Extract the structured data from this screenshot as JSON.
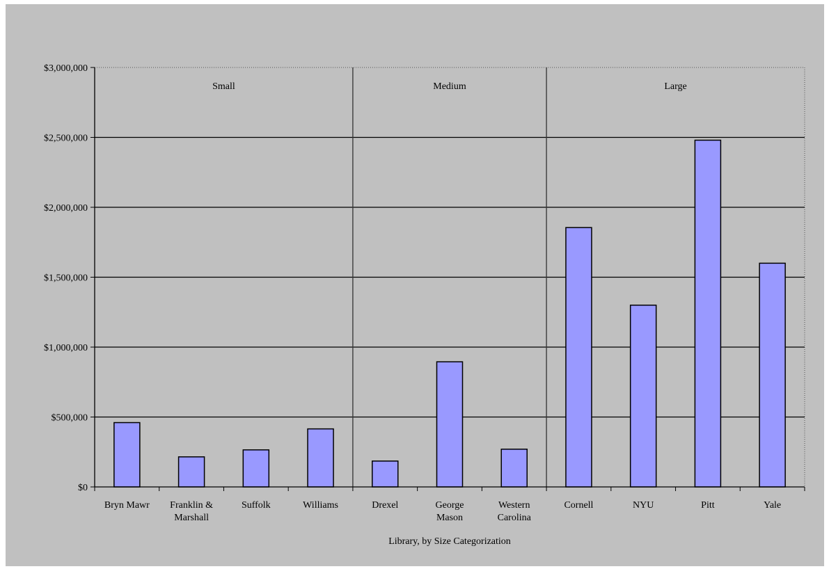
{
  "chart_data": {
    "type": "bar",
    "title": "",
    "xlabel": "Library, by Size Categorization",
    "ylabel": "",
    "ylim": [
      0,
      3000000
    ],
    "yticks": [
      {
        "value": 0,
        "label": "$0"
      },
      {
        "value": 500000,
        "label": "$500,000"
      },
      {
        "value": 1000000,
        "label": "$1,000,000"
      },
      {
        "value": 1500000,
        "label": "$1,500,000"
      },
      {
        "value": 2000000,
        "label": "$2,000,000"
      },
      {
        "value": 2500000,
        "label": "$2,500,000"
      },
      {
        "value": 3000000,
        "label": "$3,000,000"
      }
    ],
    "categories": [
      [
        "Bryn Mawr"
      ],
      [
        "Franklin &",
        "Marshall"
      ],
      [
        "Suffolk"
      ],
      [
        "Williams"
      ],
      [
        "Drexel"
      ],
      [
        "George",
        "Mason"
      ],
      [
        "Western",
        "Carolina"
      ],
      [
        "Cornell"
      ],
      [
        "NYU"
      ],
      [
        "Pitt"
      ],
      [
        "Yale"
      ]
    ],
    "values": [
      460000,
      215000,
      265000,
      415000,
      185000,
      895000,
      270000,
      1855000,
      1300000,
      2480000,
      1600000
    ],
    "groups": [
      {
        "label": "Small",
        "start": 0,
        "end": 3
      },
      {
        "label": "Medium",
        "start": 4,
        "end": 6
      },
      {
        "label": "Large",
        "start": 7,
        "end": 10
      }
    ],
    "grid": true,
    "legend": "none",
    "colors": {
      "bar_fill": "#9999ff",
      "bar_stroke": "#000000",
      "plot_bg": "#c0c0c0",
      "gridline": "#000000"
    }
  }
}
